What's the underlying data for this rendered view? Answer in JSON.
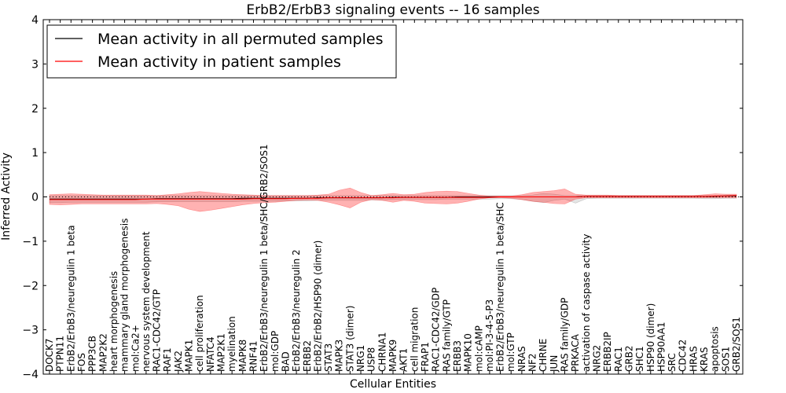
{
  "chart_data": {
    "type": "line",
    "title": "ErbB2/ErbB3 signaling events -- 16 samples",
    "xlabel": "Cellular Entities",
    "ylabel": "Inferred Activity",
    "ylim": [
      -4,
      4
    ],
    "yticks": [
      -4,
      -3,
      -2,
      -1,
      0,
      1,
      2,
      3,
      4
    ],
    "ytick_labels": [
      "−4",
      "−3",
      "−2",
      "−1",
      "0",
      "1",
      "2",
      "3",
      "4"
    ],
    "legend_position": "top-left",
    "categories": [
      "DOCK7",
      "PTPN11",
      "ErbB2/ErbB3/neuregulin 1 beta",
      "FOS",
      "PPP3CB",
      "MAP2K2",
      "heart morphogenesis",
      "mammary gland morphogenesis",
      "mol:Ca2+",
      "nervous system development",
      "RAC1-CDC42/GTP",
      "RAF1",
      "JAK2",
      "MAPK1",
      "cell proliferation",
      "NFATC4",
      "MAP2K1",
      "myelination",
      "MAPK8",
      "RNF41",
      "ErbB2/ErbB3/neuregulin 1 beta/SHC/GRB2/SOS1",
      "mol:GDP",
      "BAD",
      "ErbB2/ErbB3/neuregulin 2",
      "ERBB2",
      "ErbB2/ErbB2/HSP90 (dimer)",
      "STAT3",
      "MAPK3",
      "STAT3 (dimer)",
      "NRG1",
      "USP8",
      "CHRNA1",
      "MAPK9",
      "AKT1",
      "cell migration",
      "FRAP1",
      "RAC1-CDC42/GDP",
      "RAS family/GTP",
      "ERBB3",
      "MAPK10",
      "mol:cAMP",
      "mol:PI-3-4-5-P3",
      "ErbB2/ErbB3/neuregulin 1 beta/SHC",
      "mol:GTP",
      "NRAS",
      "NF2",
      "CHRNE",
      "JUN",
      "RAS family/GDP",
      "PRKACA",
      "activation of caspase activity",
      "NRG2",
      "ERBB2IP",
      "RAC1",
      "GRB2",
      "SHC1",
      "HSP90 (dimer)",
      "HSP90AA1",
      "SRC",
      "CDC42",
      "HRAS",
      "KRAS",
      "apoptosis",
      "SOS1",
      "GRB2/SOS1"
    ],
    "series": [
      {
        "name": "Mean activity in all permuted samples",
        "color": "#000000",
        "values": [
          -0.05,
          -0.05,
          -0.05,
          -0.05,
          -0.05,
          -0.05,
          -0.05,
          -0.05,
          -0.05,
          -0.05,
          -0.04,
          -0.04,
          -0.04,
          -0.04,
          -0.04,
          -0.04,
          -0.04,
          -0.04,
          -0.03,
          -0.03,
          -0.03,
          -0.03,
          -0.03,
          -0.03,
          -0.03,
          -0.02,
          -0.02,
          -0.02,
          -0.02,
          -0.02,
          -0.02,
          -0.02,
          -0.01,
          -0.01,
          -0.01,
          -0.01,
          -0.01,
          -0.01,
          0.0,
          0.0,
          0.0,
          0.0,
          0.0,
          0.0,
          0.0,
          0.0,
          0.0,
          0.0,
          0.0,
          0.0,
          0.01,
          0.01,
          0.01,
          0.01,
          0.01,
          0.01,
          0.01,
          0.01,
          0.01,
          0.01,
          0.01,
          0.01,
          0.01,
          0.02,
          0.02
        ],
        "band_upper": [
          0.03,
          0.03,
          0.03,
          0.03,
          0.03,
          0.03,
          0.03,
          0.03,
          0.03,
          0.03,
          0.03,
          0.03,
          0.03,
          0.03,
          0.03,
          0.03,
          0.03,
          0.03,
          0.03,
          0.03,
          0.03,
          0.03,
          0.03,
          0.03,
          0.03,
          0.03,
          0.03,
          0.03,
          0.03,
          0.03,
          0.03,
          0.03,
          0.03,
          0.03,
          0.03,
          0.03,
          0.03,
          0.03,
          0.03,
          0.03,
          0.03,
          0.03,
          0.03,
          0.03,
          0.03,
          0.04,
          0.08,
          0.06,
          0.03,
          0.03,
          0.03,
          0.03,
          0.03,
          0.03,
          0.03,
          0.03,
          0.03,
          0.03,
          0.03,
          0.03,
          0.03,
          0.03,
          0.03,
          0.04,
          0.04
        ],
        "band_lower": [
          -0.13,
          -0.13,
          -0.12,
          -0.12,
          -0.12,
          -0.12,
          -0.12,
          -0.12,
          -0.12,
          -0.12,
          -0.11,
          -0.11,
          -0.11,
          -0.11,
          -0.11,
          -0.11,
          -0.11,
          -0.11,
          -0.1,
          -0.1,
          -0.1,
          -0.1,
          -0.09,
          -0.09,
          -0.09,
          -0.08,
          -0.08,
          -0.08,
          -0.08,
          -0.08,
          -0.07,
          -0.07,
          -0.06,
          -0.06,
          -0.06,
          -0.06,
          -0.06,
          -0.05,
          -0.05,
          -0.05,
          -0.05,
          -0.05,
          -0.04,
          -0.04,
          -0.06,
          -0.1,
          -0.13,
          -0.08,
          -0.05,
          -0.14,
          -0.04,
          -0.03,
          -0.03,
          -0.03,
          -0.03,
          -0.03,
          -0.03,
          -0.03,
          -0.03,
          -0.03,
          -0.03,
          -0.04,
          -0.04,
          -0.03,
          -0.03
        ]
      },
      {
        "name": "Mean activity in patient samples",
        "color": "#ff0000",
        "values": [
          -0.06,
          -0.06,
          -0.06,
          -0.06,
          -0.06,
          -0.06,
          -0.06,
          -0.06,
          -0.06,
          -0.05,
          -0.05,
          -0.05,
          -0.05,
          -0.05,
          -0.05,
          -0.05,
          -0.05,
          -0.05,
          -0.05,
          -0.04,
          -0.04,
          -0.04,
          -0.04,
          -0.03,
          -0.03,
          -0.03,
          -0.02,
          -0.02,
          -0.02,
          -0.02,
          -0.02,
          -0.02,
          -0.02,
          -0.01,
          -0.01,
          -0.01,
          -0.01,
          -0.01,
          -0.01,
          -0.01,
          -0.01,
          -0.01,
          0.0,
          0.0,
          0.0,
          0.0,
          0.0,
          0.0,
          0.0,
          0.0,
          0.01,
          0.01,
          0.01,
          0.01,
          0.01,
          0.01,
          0.01,
          0.01,
          0.01,
          0.01,
          0.01,
          0.01,
          0.02,
          0.02,
          0.03
        ],
        "band_upper": [
          0.05,
          0.06,
          0.07,
          0.06,
          0.05,
          0.04,
          0.04,
          0.04,
          0.04,
          0.04,
          0.03,
          0.05,
          0.07,
          0.1,
          0.12,
          0.1,
          0.08,
          0.06,
          0.05,
          0.04,
          0.03,
          0.03,
          0.03,
          0.03,
          0.03,
          0.04,
          0.06,
          0.15,
          0.2,
          0.1,
          0.03,
          0.05,
          0.08,
          0.05,
          0.06,
          0.1,
          0.12,
          0.13,
          0.12,
          0.08,
          0.04,
          0.02,
          0.02,
          0.02,
          0.05,
          0.1,
          0.12,
          0.14,
          0.18,
          0.06,
          0.04,
          0.04,
          0.04,
          0.03,
          0.03,
          0.03,
          0.03,
          0.03,
          0.03,
          0.03,
          0.03,
          0.05,
          0.07,
          0.06,
          0.06
        ],
        "band_lower": [
          -0.17,
          -0.18,
          -0.17,
          -0.16,
          -0.16,
          -0.16,
          -0.16,
          -0.16,
          -0.16,
          -0.16,
          -0.15,
          -0.17,
          -0.2,
          -0.28,
          -0.33,
          -0.3,
          -0.26,
          -0.22,
          -0.18,
          -0.15,
          -0.13,
          -0.12,
          -0.1,
          -0.08,
          -0.07,
          -0.08,
          -0.12,
          -0.18,
          -0.25,
          -0.12,
          -0.06,
          -0.08,
          -0.12,
          -0.08,
          -0.1,
          -0.14,
          -0.15,
          -0.16,
          -0.14,
          -0.1,
          -0.05,
          -0.02,
          -0.02,
          -0.03,
          -0.06,
          -0.1,
          -0.12,
          -0.15,
          -0.16,
          -0.05,
          -0.02,
          -0.02,
          -0.02,
          -0.02,
          -0.02,
          -0.02,
          -0.02,
          -0.02,
          -0.02,
          -0.02,
          -0.02,
          -0.02,
          -0.02,
          -0.02,
          -0.02
        ]
      }
    ]
  }
}
